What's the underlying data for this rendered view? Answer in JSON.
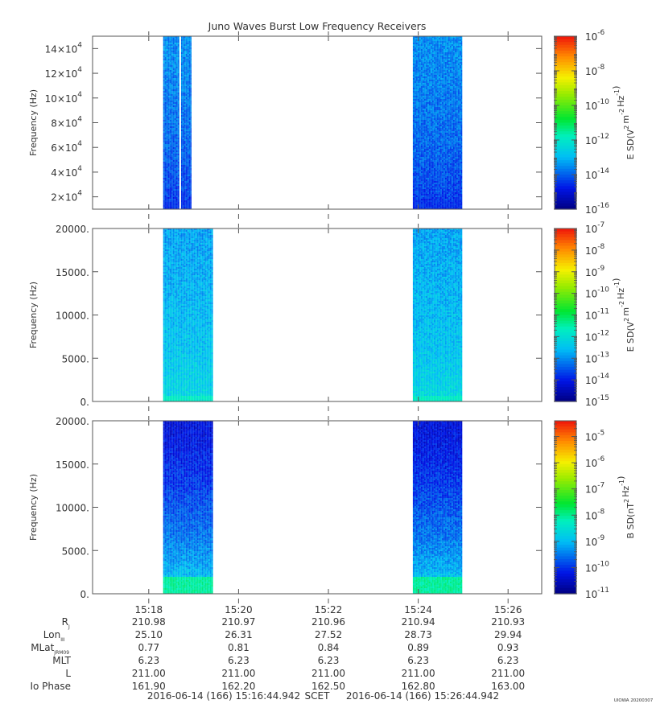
{
  "title": "Juno Waves Burst Low Frequency Receivers",
  "time_axis": {
    "start_min": 916.749,
    "end_min": 926.749,
    "ticks": [
      {
        "t": 918,
        "label": "15:18"
      },
      {
        "t": 920,
        "label": "15:20"
      },
      {
        "t": 922,
        "label": "15:22"
      },
      {
        "t": 924,
        "label": "15:24"
      },
      {
        "t": 926,
        "label": "15:26"
      }
    ]
  },
  "ephemeris": {
    "rows": [
      {
        "label": "R",
        "sub": "J",
        "values": [
          "210.98",
          "210.97",
          "210.96",
          "210.94",
          "210.93"
        ]
      },
      {
        "label": "Lon",
        "sub": "III",
        "values": [
          "25.10",
          "26.31",
          "27.52",
          "28.73",
          "29.94"
        ]
      },
      {
        "label": "MLat",
        "sub": "JRM09",
        "values": [
          "0.77",
          "0.81",
          "0.84",
          "0.89",
          "0.93"
        ]
      },
      {
        "label": "MLT",
        "sub": "",
        "values": [
          "6.23",
          "6.23",
          "6.23",
          "6.23",
          "6.23"
        ]
      },
      {
        "label": "L",
        "sub": "",
        "values": [
          "211.00",
          "211.00",
          "211.00",
          "211.00",
          "211.00"
        ]
      },
      {
        "label": "Io Phase",
        "sub": "",
        "values": [
          "161.90",
          "162.20",
          "162.50",
          "162.80",
          "163.00"
        ]
      }
    ]
  },
  "footer": {
    "start": "2016-06-14 (166) 15:16:44.942",
    "scet": "SCET",
    "end": "2016-06-14 (166) 15:26:44.942",
    "stamp": "UIOWA 20200307"
  },
  "chart_data": [
    {
      "type": "heatmap",
      "ylabel": "Frequency (Hz)",
      "ylim": [
        10000,
        150000
      ],
      "yticks": [
        {
          "v": 20000,
          "m": "2",
          "e": "4"
        },
        {
          "v": 40000,
          "m": "4",
          "e": "4"
        },
        {
          "v": 60000,
          "m": "6",
          "e": "4"
        },
        {
          "v": 80000,
          "m": "8",
          "e": "4"
        },
        {
          "v": 100000,
          "m": "10",
          "e": "4"
        },
        {
          "v": 120000,
          "m": "12",
          "e": "4"
        },
        {
          "v": 140000,
          "m": "14",
          "e": "4"
        }
      ],
      "colorbar": {
        "label": "E SD",
        "unit": "V^2 m^-2 Hz^-1",
        "scale": "log",
        "range": [
          -16,
          -6
        ],
        "tick_exponents": [
          -6,
          -8,
          -10,
          -12,
          -14,
          -16
        ]
      },
      "bursts": [
        {
          "start": 918.32,
          "end": 918.95,
          "gap_at": 918.7,
          "floor_ratio": 0.06,
          "base_level": 0.25,
          "low_level": 0.12
        },
        {
          "start": 923.88,
          "end": 924.98,
          "floor_ratio": 0.06,
          "base_level": 0.25,
          "low_level": 0.12
        }
      ]
    },
    {
      "type": "heatmap",
      "ylabel": "Frequency (Hz)",
      "ylim": [
        0,
        20000
      ],
      "yticks": [
        {
          "v": 0,
          "label": "0."
        },
        {
          "v": 5000,
          "label": "5000."
        },
        {
          "v": 10000,
          "label": "10000."
        },
        {
          "v": 15000,
          "label": "15000."
        },
        {
          "v": 20000,
          "label": "20000."
        }
      ],
      "colorbar": {
        "label": "E SD",
        "unit": "V^2 m^-2 Hz^-1",
        "scale": "log",
        "range": [
          -15,
          -7
        ],
        "tick_exponents": [
          -7,
          -8,
          -9,
          -10,
          -11,
          -12,
          -13,
          -14,
          -15
        ]
      },
      "bursts": [
        {
          "start": 918.32,
          "end": 919.43,
          "floor_ratio": 0.04,
          "base_level": 0.27,
          "low_level": 0.38
        },
        {
          "start": 923.88,
          "end": 924.98,
          "floor_ratio": 0.04,
          "base_level": 0.27,
          "low_level": 0.38
        }
      ]
    },
    {
      "type": "heatmap",
      "ylabel": "Frequency (Hz)",
      "ylim": [
        0,
        20000
      ],
      "yticks": [
        {
          "v": 0,
          "label": "0."
        },
        {
          "v": 5000,
          "label": "5000."
        },
        {
          "v": 10000,
          "label": "10000."
        },
        {
          "v": 15000,
          "label": "15000."
        },
        {
          "v": 20000,
          "label": "20000."
        }
      ],
      "colorbar": {
        "label": "B SD",
        "unit": "nT^2 Hz^-1",
        "scale": "log",
        "range": [
          -11,
          -4.4
        ],
        "tick_exponents": [
          -5,
          -6,
          -7,
          -8,
          -9,
          -10,
          -11
        ]
      },
      "bursts": [
        {
          "start": 918.32,
          "end": 919.43,
          "floor_ratio": 0.1,
          "base_level": 0.1,
          "low_level": 0.42
        },
        {
          "start": 923.88,
          "end": 924.98,
          "floor_ratio": 0.1,
          "base_level": 0.1,
          "low_level": 0.42
        }
      ]
    }
  ]
}
